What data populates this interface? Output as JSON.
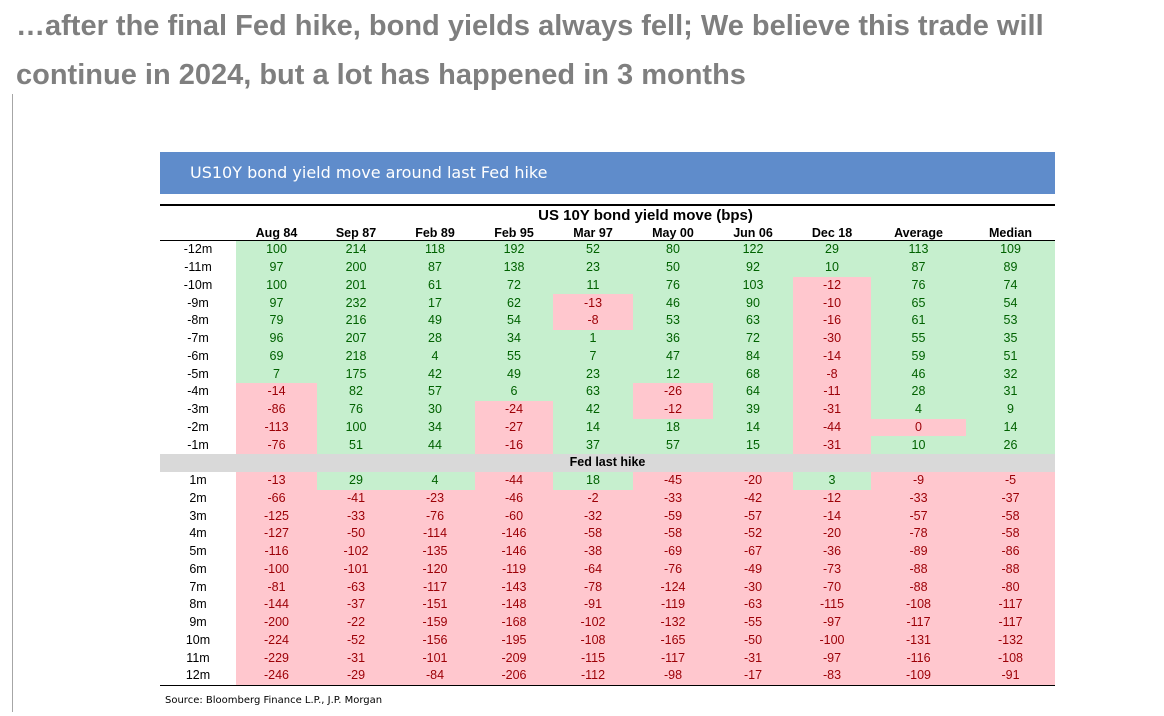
{
  "headline": "…after the final Fed hike, bond yields always fell; We believe this trade will continue in 2024, but a lot has happened in 3 months",
  "banner_title": "US10Y bond yield move around last Fed hike",
  "source": "Source: Bloomberg Finance L.P., J.P. Morgan",
  "colors": {
    "positive_fill": "#c6efce",
    "negative_fill": "#ffc7ce",
    "banner": "#5f8ccb",
    "headline": "#7f7f7f"
  },
  "chart_data": {
    "type": "table",
    "title": "US 10Y bond yield move (bps)",
    "columns": [
      "Aug 84",
      "Sep 87",
      "Feb 89",
      "Feb 95",
      "Mar 97",
      "May 00",
      "Jun 06",
      "Dec 18",
      "Average",
      "Median"
    ],
    "divider_label": "Fed last hike",
    "before_rows": [
      {
        "label": "-12m",
        "values": [
          100,
          214,
          118,
          192,
          52,
          80,
          122,
          29,
          113,
          109
        ]
      },
      {
        "label": "-11m",
        "values": [
          97,
          200,
          87,
          138,
          23,
          50,
          92,
          10,
          87,
          89
        ]
      },
      {
        "label": "-10m",
        "values": [
          100,
          201,
          61,
          72,
          11,
          76,
          103,
          -12,
          76,
          74
        ]
      },
      {
        "label": "-9m",
        "values": [
          97,
          232,
          17,
          62,
          -13,
          46,
          90,
          -10,
          65,
          54
        ]
      },
      {
        "label": "-8m",
        "values": [
          79,
          216,
          49,
          54,
          -8,
          53,
          63,
          -16,
          61,
          53
        ]
      },
      {
        "label": "-7m",
        "values": [
          96,
          207,
          28,
          34,
          1,
          36,
          72,
          -30,
          55,
          35
        ]
      },
      {
        "label": "-6m",
        "values": [
          69,
          218,
          4,
          55,
          7,
          47,
          84,
          -14,
          59,
          51
        ]
      },
      {
        "label": "-5m",
        "values": [
          7,
          175,
          42,
          49,
          23,
          12,
          68,
          -8,
          46,
          32
        ]
      },
      {
        "label": "-4m",
        "values": [
          -14,
          82,
          57,
          6,
          63,
          -26,
          64,
          -11,
          28,
          31
        ]
      },
      {
        "label": "-3m",
        "values": [
          -86,
          76,
          30,
          -24,
          42,
          -12,
          39,
          -31,
          4,
          9
        ]
      },
      {
        "label": "-2m",
        "values": [
          -113,
          100,
          34,
          -27,
          14,
          18,
          14,
          -44,
          0,
          14
        ]
      },
      {
        "label": "-1m",
        "values": [
          -76,
          51,
          44,
          -16,
          37,
          57,
          15,
          -31,
          10,
          26
        ]
      }
    ],
    "after_rows": [
      {
        "label": "1m",
        "values": [
          -13,
          29,
          4,
          -44,
          18,
          -45,
          -20,
          3,
          -9,
          -5
        ]
      },
      {
        "label": "2m",
        "values": [
          -66,
          -41,
          -23,
          -46,
          -2,
          -33,
          -42,
          -12,
          -33,
          -37
        ]
      },
      {
        "label": "3m",
        "values": [
          -125,
          -33,
          -76,
          -60,
          -32,
          -59,
          -57,
          -14,
          -57,
          -58
        ]
      },
      {
        "label": "4m",
        "values": [
          -127,
          -50,
          -114,
          -146,
          -58,
          -58,
          -52,
          -20,
          -78,
          -58
        ]
      },
      {
        "label": "5m",
        "values": [
          -116,
          -102,
          -135,
          -146,
          -38,
          -69,
          -67,
          -36,
          -89,
          -86
        ]
      },
      {
        "label": "6m",
        "values": [
          -100,
          -101,
          -120,
          -119,
          -64,
          -76,
          -49,
          -73,
          -88,
          -88
        ]
      },
      {
        "label": "7m",
        "values": [
          -81,
          -63,
          -117,
          -143,
          -78,
          -124,
          -30,
          -70,
          -88,
          -80
        ]
      },
      {
        "label": "8m",
        "values": [
          -144,
          -37,
          -151,
          -148,
          -91,
          -119,
          -63,
          -115,
          -108,
          -117
        ]
      },
      {
        "label": "9m",
        "values": [
          -200,
          -22,
          -159,
          -168,
          -102,
          -132,
          -55,
          -97,
          -117,
          -117
        ]
      },
      {
        "label": "10m",
        "values": [
          -224,
          -52,
          -156,
          -195,
          -108,
          -165,
          -50,
          -100,
          -131,
          -132
        ]
      },
      {
        "label": "11m",
        "values": [
          -229,
          -31,
          -101,
          -209,
          -115,
          -117,
          -31,
          -97,
          -116,
          -108
        ]
      },
      {
        "label": "12m",
        "values": [
          -246,
          -29,
          -84,
          -206,
          -112,
          -98,
          -17,
          -83,
          -109,
          -91
        ]
      }
    ]
  }
}
